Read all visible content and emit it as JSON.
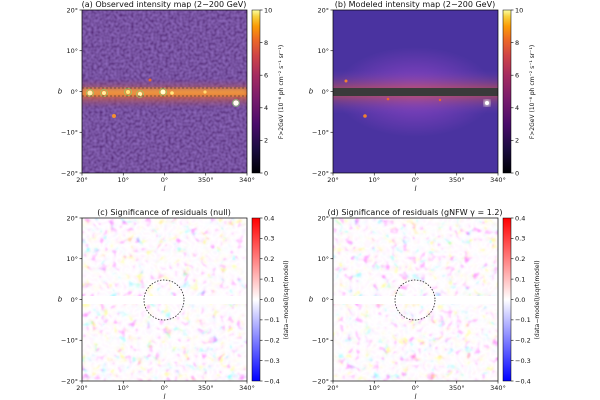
{
  "chart_data": [
    {
      "type": "heatmap",
      "title": "(a) Observed intensity map (2−200 GeV)",
      "xlabel": "l",
      "ylabel": "b",
      "xticks": [
        "20°",
        "10°",
        "0°",
        "350°",
        "340°"
      ],
      "yticks": [
        "20°",
        "10°",
        "0°",
        "−10°",
        "−20°"
      ],
      "xlim": [
        20,
        -20
      ],
      "ylim": [
        -20,
        20
      ],
      "colorbar": {
        "label": "F>2GeV (10⁻⁶ ph cm⁻² s⁻¹ sr⁻¹)",
        "range": [
          0,
          10
        ],
        "ticks": [
          "0",
          "2",
          "4",
          "6",
          "8",
          "10"
        ],
        "colormap": "inferno"
      },
      "features": [
        "bright Galactic plane band",
        "point sources",
        "masked source circles"
      ]
    },
    {
      "type": "heatmap",
      "title": "(b) Modeled intensity map (2−200 GeV)",
      "xlabel": "l",
      "ylabel": "b",
      "xticks": [
        "20°",
        "10°",
        "0°",
        "350°",
        "340°"
      ],
      "yticks": [
        "20°",
        "10°",
        "0°",
        "−10°",
        "−20°"
      ],
      "xlim": [
        20,
        -20
      ],
      "ylim": [
        -20,
        20
      ],
      "colorbar": {
        "label": "F>2GeV (10⁻⁶ ph cm⁻² s⁻¹ sr⁻¹)",
        "range": [
          0,
          10
        ],
        "ticks": [
          "0",
          "2",
          "4",
          "6",
          "8",
          "10"
        ],
        "colormap": "inferno"
      },
      "features": [
        "smooth model",
        "masked band |b|<2° shown grey"
      ]
    },
    {
      "type": "heatmap",
      "title": "(c) Significance of residuals (null)",
      "xlabel": "l",
      "ylabel": "b",
      "xticks": [
        "20°",
        "10°",
        "0°",
        "350°",
        "340°"
      ],
      "yticks": [
        "20°",
        "10°",
        "0°",
        "−10°",
        "−20°"
      ],
      "xlim": [
        20,
        -20
      ],
      "ylim": [
        -20,
        20
      ],
      "colorbar": {
        "label": "(data−model)/sqrt(model)",
        "range": [
          -0.4,
          0.4
        ],
        "ticks": [
          "0.4",
          "0.3",
          "0.2",
          "0.1",
          "0.0",
          "−0.1",
          "−0.2",
          "−0.3",
          "−0.4"
        ],
        "colormap": "bwr"
      },
      "features": [
        "masked band white",
        "dotted circle r≈10° about center"
      ]
    },
    {
      "type": "heatmap",
      "title": "(d) Significance of residuals (gNFW γ = 1.2)",
      "xlabel": "l",
      "ylabel": "b",
      "xticks": [
        "20°",
        "10°",
        "0°",
        "350°",
        "340°"
      ],
      "yticks": [
        "20°",
        "10°",
        "0°",
        "−10°",
        "−20°"
      ],
      "xlim": [
        20,
        -20
      ],
      "ylim": [
        -20,
        20
      ],
      "colorbar": {
        "label": "(data−model)/sqrt(model)",
        "range": [
          -0.4,
          0.4
        ],
        "ticks": [
          "0.4",
          "0.3",
          "0.2",
          "0.1",
          "0.0",
          "−0.1",
          "−0.2",
          "−0.3",
          "−0.4"
        ],
        "colormap": "bwr"
      },
      "features": [
        "masked band white",
        "dotted circle r≈10° about center"
      ]
    }
  ]
}
